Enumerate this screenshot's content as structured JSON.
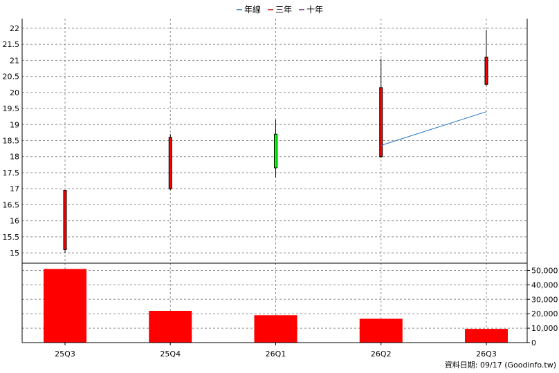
{
  "legend": {
    "items": [
      {
        "label": "年線",
        "color": "#1f6fbf"
      },
      {
        "label": "三年",
        "color": "#cc0000"
      },
      {
        "label": "十年",
        "color": "#7a1f7a"
      }
    ]
  },
  "footer": {
    "text": "資料日期: 09/17 (Goodinfo.tw)"
  },
  "chart_data": {
    "type": "candlestick-with-volume",
    "categories": [
      "25Q3",
      "25Q4",
      "26Q1",
      "26Q2",
      "26Q3"
    ],
    "price_axis": {
      "ylim": [
        14.7,
        22.3
      ],
      "ticks": [
        15,
        15.5,
        16,
        16.5,
        17,
        17.5,
        18,
        18.5,
        19,
        19.5,
        20,
        20.5,
        21,
        21.5,
        22
      ]
    },
    "candles": [
      {
        "open": 15.1,
        "close": 16.95,
        "high": 16.95,
        "low": 15.0,
        "color": "#ff0000"
      },
      {
        "open": 17.0,
        "close": 18.6,
        "high": 18.7,
        "low": 16.95,
        "color": "#ff0000"
      },
      {
        "open": 18.7,
        "close": 17.65,
        "high": 19.15,
        "low": 17.35,
        "color": "#00ff00"
      },
      {
        "open": 18.0,
        "close": 20.15,
        "high": 21.05,
        "low": 17.95,
        "color": "#ff0000"
      },
      {
        "open": 20.25,
        "close": 21.1,
        "high": 21.95,
        "low": 20.2,
        "color": "#ff0000"
      }
    ],
    "annual_line": {
      "name": "年線",
      "points": [
        {
          "category": "26Q2",
          "value": 18.35
        },
        {
          "category": "26Q3",
          "value": 19.4
        }
      ]
    },
    "volume_axis": {
      "ylim": [
        0,
        55000
      ],
      "ticks": [
        "0",
        "10,000",
        "20,000",
        "30,000",
        "40,000",
        "50,000"
      ]
    },
    "volumes": [
      51000,
      22000,
      19000,
      16500,
      9500
    ],
    "volume_color": "#ff0000"
  }
}
